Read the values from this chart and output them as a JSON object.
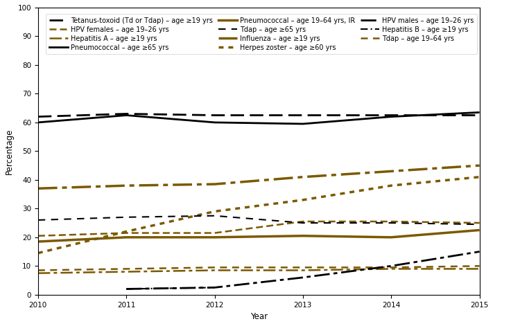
{
  "years": [
    2010,
    2011,
    2012,
    2013,
    2014,
    2015
  ],
  "series": [
    {
      "label": "Tetanus-toxoid (Td or Tdap) – age ≥19 yrs",
      "color": "#000000",
      "dashes": [
        7,
        3
      ],
      "lw": 2.0,
      "values": [
        62.0,
        63.0,
        62.5,
        62.5,
        62.5,
        62.5
      ]
    },
    {
      "label": "Pneumococcal – age ≥65 yrs",
      "color": "#000000",
      "dashes": null,
      "lw": 2.0,
      "values": [
        60.0,
        62.5,
        60.0,
        59.5,
        62.0,
        63.5
      ]
    },
    {
      "label": "Influenza – age ≥19 yrs",
      "color": "#7B5900",
      "dashes": [
        8,
        2,
        2,
        2
      ],
      "lw": 2.5,
      "values": [
        37.0,
        38.0,
        38.5,
        41.0,
        43.0,
        45.0
      ]
    },
    {
      "label": "Hepatitis B – age ≥19 yrs",
      "color": "#000000",
      "dashes": [
        5,
        2,
        1,
        2
      ],
      "lw": 1.5,
      "values": [
        null,
        2.0,
        2.5,
        null,
        null,
        null
      ]
    },
    {
      "label": "HPV females – age 19–26 yrs",
      "color": "#7B5900",
      "dashes": [
        4,
        2
      ],
      "lw": 1.8,
      "values": [
        20.5,
        21.5,
        21.5,
        25.5,
        25.5,
        25.0
      ]
    },
    {
      "label": "Pneumococcal – age 19–64 yrs, IR",
      "color": "#7B5900",
      "dashes": null,
      "lw": 2.5,
      "values": [
        18.5,
        20.0,
        20.0,
        20.5,
        20.0,
        22.5
      ]
    },
    {
      "label": "Herpes zoster – age ≥60 yrs",
      "color": "#7B5900",
      "dashes": [
        2,
        2
      ],
      "lw": 2.5,
      "values": [
        14.5,
        22.0,
        29.0,
        33.0,
        38.0,
        41.0
      ]
    },
    {
      "label": "Tdap – age 19–64 yrs",
      "color": "#7B5900",
      "dashes": [
        4,
        3
      ],
      "lw": 1.8,
      "values": [
        8.5,
        9.0,
        9.5,
        9.5,
        9.5,
        10.0
      ]
    },
    {
      "label": "Hepatitis A – age ≥19 yrs",
      "color": "#7B5900",
      "dashes": [
        7,
        2,
        2,
        2
      ],
      "lw": 1.8,
      "values": [
        7.5,
        8.0,
        8.5,
        8.5,
        9.0,
        9.0
      ]
    },
    {
      "label": "Tdap – age ≥65 yrs",
      "color": "#000000",
      "dashes": [
        5,
        4
      ],
      "lw": 1.5,
      "values": [
        26.0,
        27.0,
        27.5,
        25.0,
        25.0,
        24.5
      ]
    },
    {
      "label": "HPV males – age 19–26 yrs",
      "color": "#000000",
      "dashes": [
        8,
        2,
        2,
        2
      ],
      "lw": 2.0,
      "values": [
        null,
        2.0,
        2.5,
        6.0,
        10.0,
        15.0
      ]
    }
  ],
  "legend_rows": [
    [
      {
        "label": "Tetanus-toxoid (Td or Tdap) – age ≥19 yrs",
        "color": "#000000",
        "dashes": [
          7,
          3
        ],
        "lw": 2.0
      },
      {
        "label": "HPV females – age 19–26 yrs",
        "color": "#7B5900",
        "dashes": [
          4,
          2
        ],
        "lw": 1.8
      },
      {
        "label": "Hepatitis A – age ≥19 yrs",
        "color": "#7B5900",
        "dashes": [
          7,
          2,
          2,
          2
        ],
        "lw": 1.8
      }
    ],
    [
      {
        "label": "Pneumococcal – age ≥65 yrs",
        "color": "#000000",
        "dashes": null,
        "lw": 2.0
      },
      {
        "label": "Pneumococcal – age 19–64 yrs, IR",
        "color": "#7B5900",
        "dashes": null,
        "lw": 2.5
      },
      {
        "label": "Tdap – age ≥65 yrs",
        "color": "#000000",
        "dashes": [
          5,
          4
        ],
        "lw": 1.5
      }
    ],
    [
      {
        "label": "Influenza – age ≥19 yrs",
        "color": "#7B5900",
        "dashes": [
          8,
          2,
          2,
          2
        ],
        "lw": 2.5
      },
      {
        "label": "Herpes zoster – age ≥60 yrs",
        "color": "#7B5900",
        "dashes": [
          2,
          2
        ],
        "lw": 2.5
      },
      {
        "label": "HPV males – age 19–26 yrs",
        "color": "#000000",
        "dashes": [
          8,
          2,
          2,
          2
        ],
        "lw": 2.0
      }
    ],
    [
      {
        "label": "Hepatitis B – age ≥19 yrs",
        "color": "#000000",
        "dashes": [
          5,
          2,
          1,
          2
        ],
        "lw": 1.5
      },
      {
        "label": "Tdap – age 19–64 yrs",
        "color": "#7B5900",
        "dashes": [
          4,
          3
        ],
        "lw": 1.8
      },
      {
        "label": "",
        "color": "#ffffff",
        "dashes": null,
        "lw": 0
      }
    ]
  ],
  "xlabel": "Year",
  "ylabel": "Percentage",
  "ylim": [
    0,
    100
  ],
  "xlim": [
    2010,
    2015
  ],
  "yticks": [
    0,
    10,
    20,
    30,
    40,
    50,
    60,
    70,
    80,
    90,
    100
  ],
  "xticks": [
    2010,
    2011,
    2012,
    2013,
    2014,
    2015
  ],
  "fontsize": 7.5
}
